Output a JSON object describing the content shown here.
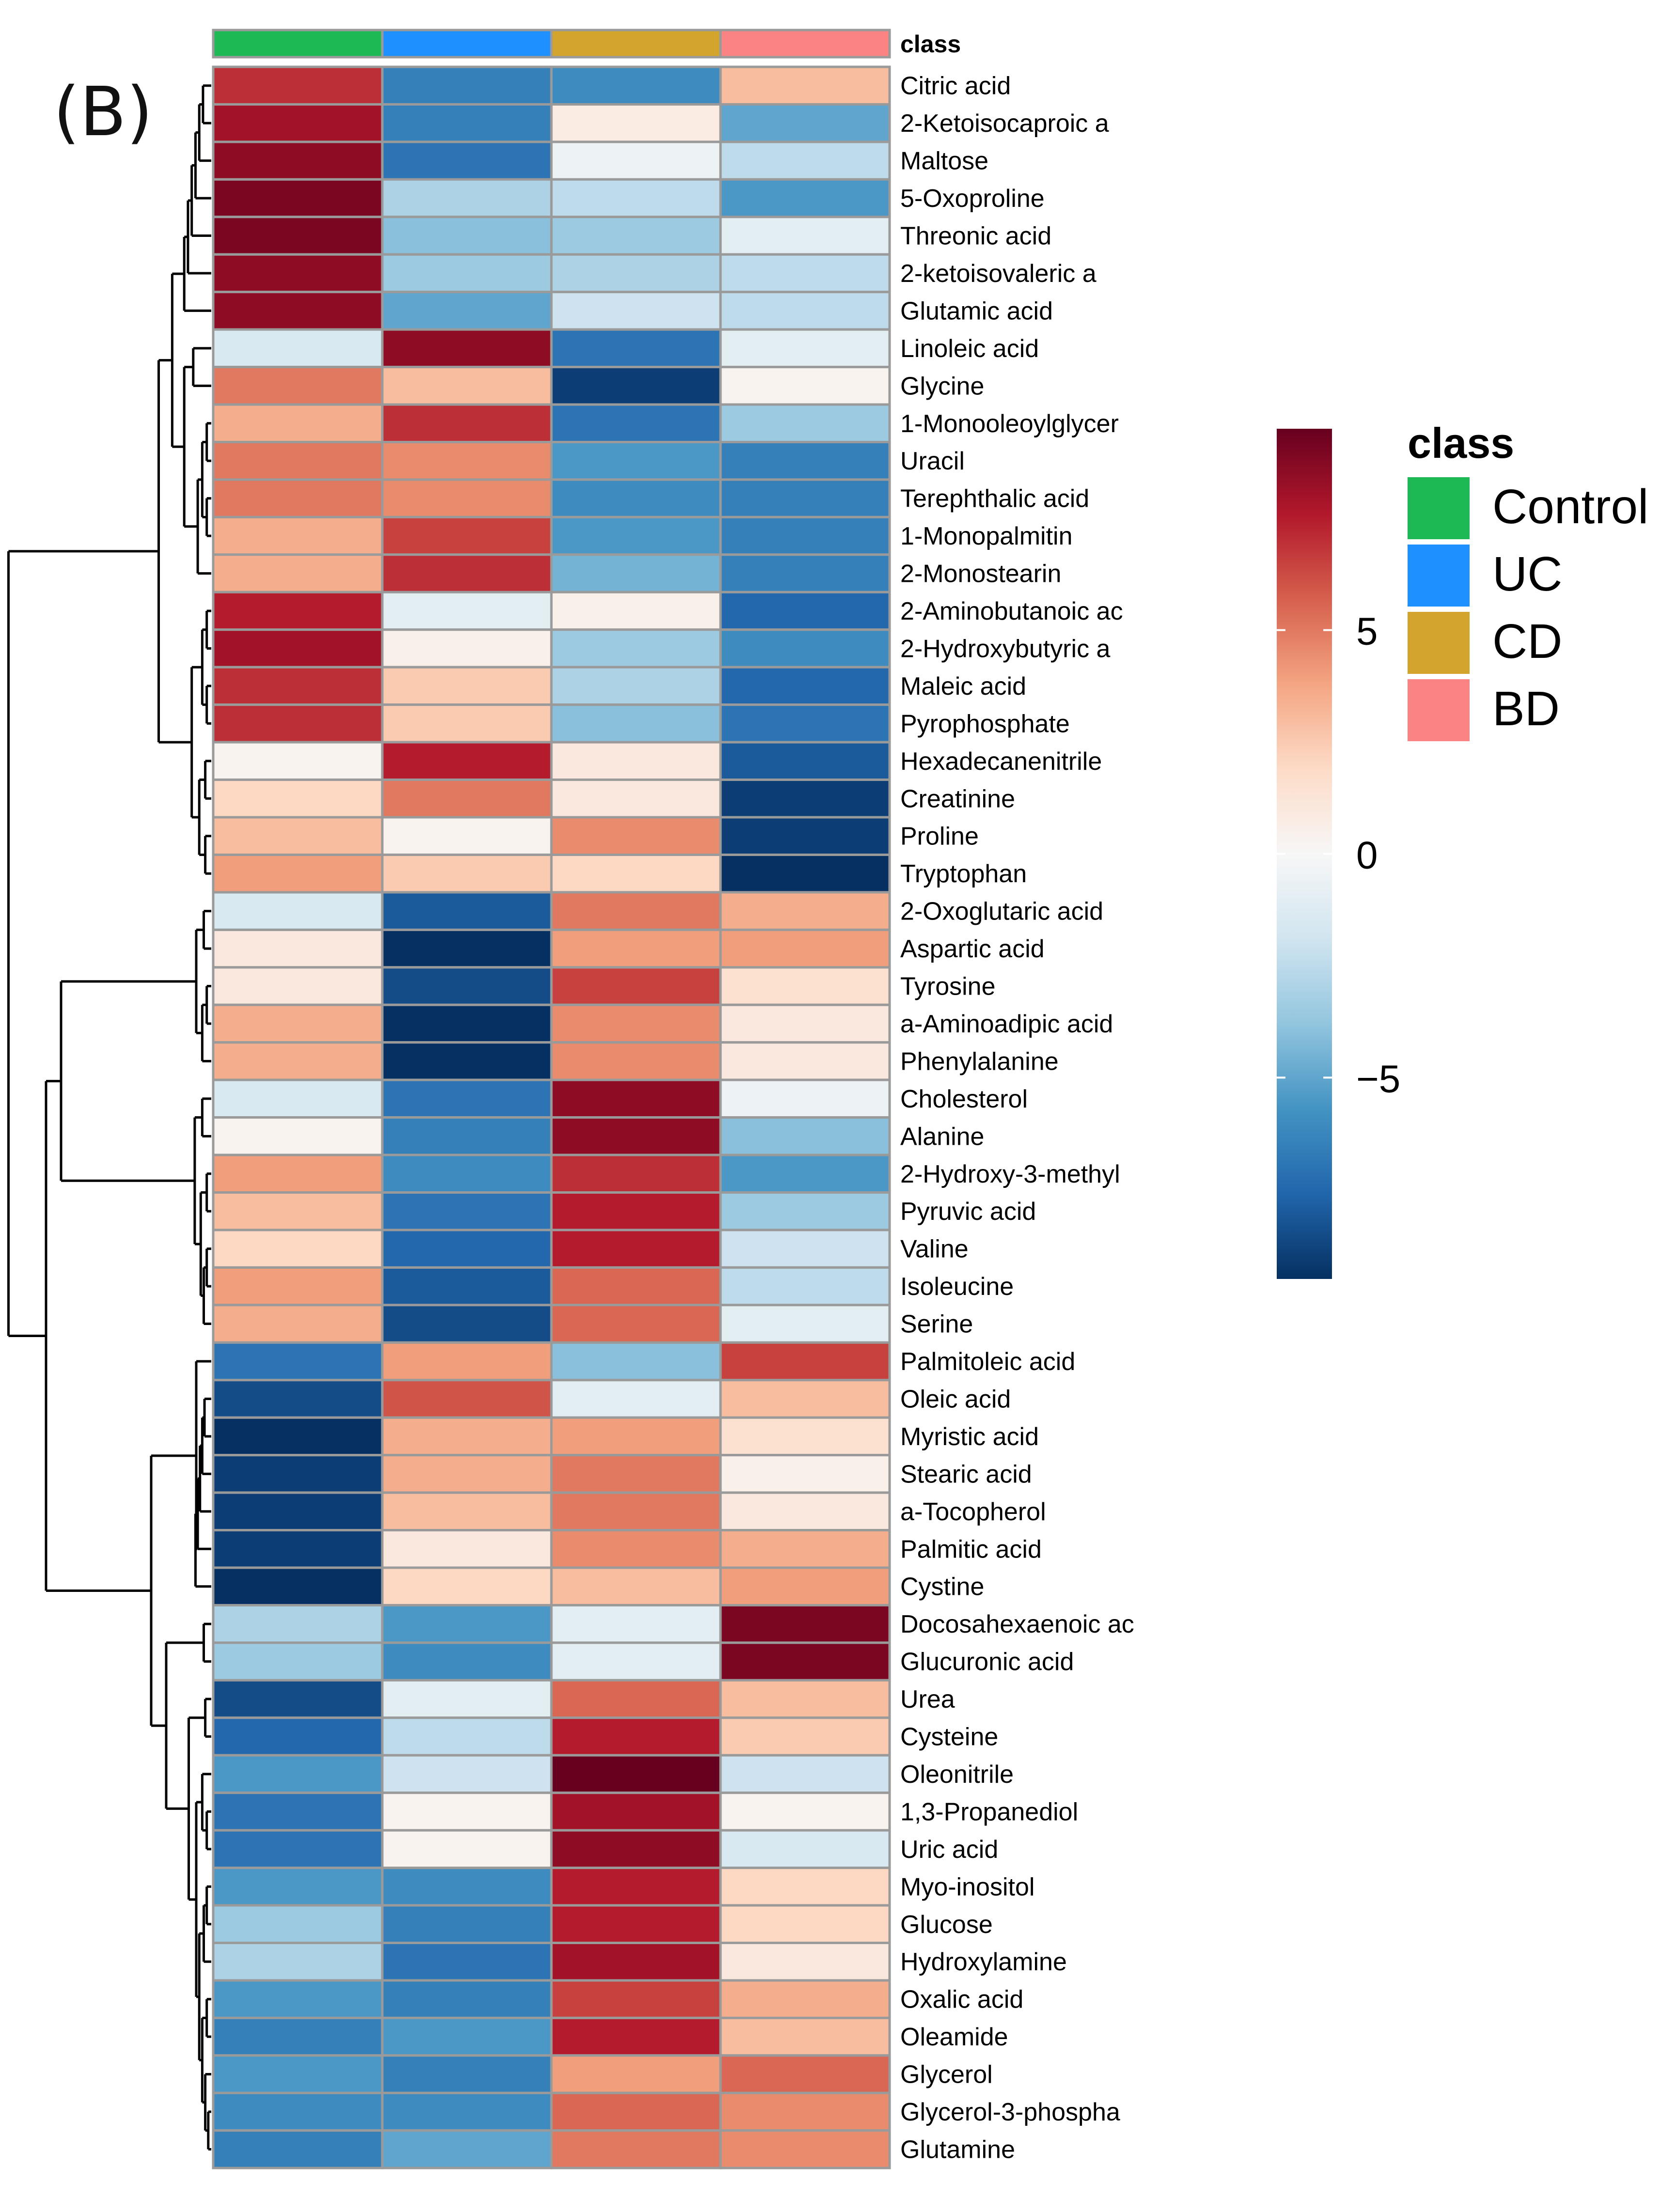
{
  "panel_label": "(B)",
  "chart_data": {
    "type": "heatmap",
    "title": "",
    "columns": [
      "Control",
      "UC",
      "CD",
      "BD"
    ],
    "annotation": {
      "title": "class",
      "categories": [
        "Control",
        "UC",
        "CD",
        "BD"
      ],
      "colors": {
        "Control": "#1db954",
        "UC": "#1e90ff",
        "CD": "#d4a52c",
        "BD": "#fc8383"
      }
    },
    "colorbar": {
      "ticks": [
        5,
        0,
        -5
      ],
      "tick_labels": [
        "5",
        "0",
        "−5"
      ],
      "range": [
        -9.5,
        9.5
      ],
      "colors": [
        "#053061",
        "#2166ac",
        "#4393c3",
        "#92c5de",
        "#d1e5f0",
        "#f7f7f7",
        "#fddbc7",
        "#f4a582",
        "#d6604d",
        "#b2182b",
        "#67001f"
      ]
    },
    "rows": [
      "Citric acid",
      "2-Ketoisocaproic a",
      "Maltose",
      "5-Oxoproline",
      "Threonic acid",
      "2-ketoisovaleric a",
      "Glutamic acid",
      "Linoleic acid",
      "Glycine",
      "1-Monooleoylglycer",
      "Uracil",
      "Terephthalic acid",
      "1-Monopalmitin",
      "2-Monostearin",
      "2-Aminobutanoic ac",
      "2-Hydroxybutyric a",
      "Maleic acid",
      "Pyrophosphate",
      "Hexadecanenitrile",
      "Creatinine",
      "Proline",
      "Tryptophan",
      "2-Oxoglutaric acid",
      "Aspartic acid",
      "Tyrosine",
      "a-Aminoadipic acid",
      "Phenylalanine",
      "Cholesterol",
      "Alanine",
      "2-Hydroxy-3-methyl",
      "Pyruvic acid",
      "Valine",
      "Isoleucine",
      "Serine",
      "Palmitoleic acid",
      "Oleic acid",
      "Myristic acid",
      "Stearic acid",
      "a-Tocopherol",
      "Palmitic acid",
      "Cystine",
      "Docosahexaenoic ac",
      "Glucuronic acid",
      "Urea",
      "Cysteine",
      "Oleonitrile",
      "1,3-Propanediol",
      "Uric acid",
      "Myo-inositol",
      "Glucose",
      "Hydroxylamine",
      "Oxalic acid",
      "Oleamide",
      "Glycerol",
      "Glycerol-3-phospha",
      "Glutamine"
    ],
    "values": [
      [
        7,
        -6.5,
        -6,
        3
      ],
      [
        8,
        -6.5,
        0.8,
        -5
      ],
      [
        8.5,
        -7,
        -0.5,
        -2.5
      ],
      [
        9,
        -3,
        -2.5,
        -5.5
      ],
      [
        9,
        -4,
        -3.5,
        -1
      ],
      [
        8.5,
        -3.5,
        -3,
        -2.5
      ],
      [
        8.5,
        -5,
        -2,
        -2.5
      ],
      [
        -1.5,
        8.5,
        -7,
        -1
      ],
      [
        5,
        3,
        -9,
        0.3
      ],
      [
        3.5,
        7,
        -7,
        -3.5
      ],
      [
        5,
        4.5,
        -5.5,
        -6.5
      ],
      [
        5,
        4.5,
        -6,
        -6.5
      ],
      [
        3.5,
        6.5,
        -5.5,
        -6.5
      ],
      [
        3.5,
        7,
        -4.5,
        -6.5
      ],
      [
        7.5,
        -1,
        0.5,
        -7.5
      ],
      [
        8,
        0.5,
        -3.5,
        -6
      ],
      [
        7,
        2.5,
        -3,
        -7.5
      ],
      [
        7,
        2.5,
        -4,
        -7
      ],
      [
        0.3,
        7.5,
        1,
        -8
      ],
      [
        2,
        5,
        1,
        -9
      ],
      [
        3,
        0.3,
        4.5,
        -9
      ],
      [
        4,
        2.5,
        2,
        -9.5
      ],
      [
        -1.5,
        -8,
        5,
        3.5
      ],
      [
        1,
        -9.5,
        4,
        4
      ],
      [
        1,
        -8.5,
        6.5,
        1.5
      ],
      [
        3.5,
        -9.5,
        4.5,
        1
      ],
      [
        3.5,
        -9.5,
        4.5,
        1
      ],
      [
        -1.5,
        -7,
        8.5,
        -0.5
      ],
      [
        0.3,
        -6.5,
        8.5,
        -4
      ],
      [
        4,
        -6,
        7,
        -5.5
      ],
      [
        3,
        -7,
        7.5,
        -3.5
      ],
      [
        2,
        -7.5,
        7.5,
        -2
      ],
      [
        4,
        -8,
        5.5,
        -2.5
      ],
      [
        3.5,
        -8.5,
        5.5,
        -1
      ],
      [
        -7,
        4,
        -4,
        6.5
      ],
      [
        -8.5,
        6,
        -1,
        3
      ],
      [
        -9.5,
        3.5,
        4,
        1.5
      ],
      [
        -9,
        3.5,
        5,
        0.5
      ],
      [
        -9,
        3,
        5,
        1
      ],
      [
        -9,
        1,
        4.5,
        3.5
      ],
      [
        -9.5,
        2,
        3,
        4
      ],
      [
        -3,
        -5.5,
        -1,
        9
      ],
      [
        -3.5,
        -6,
        -1,
        9
      ],
      [
        -8.5,
        -1,
        5.5,
        3
      ],
      [
        -7.5,
        -2.5,
        7.5,
        2.5
      ],
      [
        -5.5,
        -2,
        9.5,
        -2
      ],
      [
        -7,
        0.3,
        8,
        0.3
      ],
      [
        -7,
        0.3,
        8.5,
        -1.5
      ],
      [
        -5.5,
        -6,
        7.5,
        2
      ],
      [
        -3.5,
        -6.5,
        7.5,
        2
      ],
      [
        -3,
        -7,
        8,
        1
      ],
      [
        -5.5,
        -6.5,
        6.5,
        3.5
      ],
      [
        -6.5,
        -5.5,
        7.5,
        3
      ],
      [
        -5.5,
        -6.5,
        4,
        5.5
      ],
      [
        -6,
        -6,
        5.5,
        4.5
      ],
      [
        -6.5,
        -5,
        5,
        4.5
      ]
    ],
    "row_dendrogram": "shown",
    "legend_position": "right"
  }
}
